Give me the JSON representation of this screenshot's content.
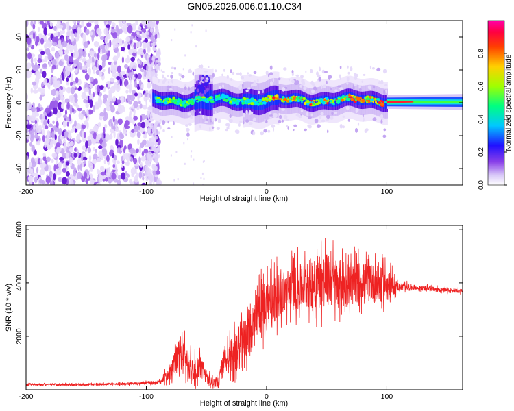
{
  "title": "GN05.2026.006.01.10.C34",
  "chart_data": [
    {
      "type": "heatmap",
      "title": "GN05.2026.006.01.10.C34",
      "xlabel": "Height of straight line (km)",
      "ylabel": "Frequency (Hz)",
      "xlim": [
        -200,
        163
      ],
      "ylim": [
        -50,
        50
      ],
      "xticks": [
        -200,
        -100,
        0,
        100
      ],
      "xtick_labels": [
        "-200",
        "-100",
        "0",
        "100"
      ],
      "yticks": [
        -40,
        -20,
        0,
        20,
        40
      ],
      "ytick_labels": [
        "-40",
        "-20",
        "0",
        "20",
        "40"
      ],
      "colorbar": {
        "label": "Normalized spectral amplitude",
        "range": [
          0,
          1
        ],
        "ticks": [
          0.0,
          0.2,
          0.4,
          0.6,
          0.8
        ],
        "tick_labels": [
          "0.0",
          "0.2",
          "0.4",
          "0.6",
          "0.8"
        ],
        "colors": [
          "#ffffff",
          "#b08cf0",
          "#7b2de0",
          "#0000ff",
          "#00e5ff",
          "#00ff50",
          "#f5ff00",
          "#ff8800",
          "#ff1020",
          "#ff00a0"
        ]
      },
      "regions": [
        {
          "x_range": [
            -200,
            -90
          ],
          "freq_range": [
            -50,
            50
          ],
          "amplitude": "low",
          "description": "scattered noise"
        },
        {
          "x_range": [
            -95,
            100
          ],
          "freq_center": 1.5,
          "freq_halfwidth": 7,
          "amplitude": "mid"
        },
        {
          "x_range": [
            100,
            163
          ],
          "freq_center": 0.5,
          "freq_halfwidth": 3,
          "amplitude": "high"
        }
      ]
    },
    {
      "type": "line",
      "xlabel": "Height of straight line (km)",
      "ylabel": "SNR (10 * v/v)",
      "xlim": [
        -200,
        163
      ],
      "ylim": [
        0,
        6150
      ],
      "xticks": [
        -200,
        -100,
        0,
        100
      ],
      "xtick_labels": [
        "-200",
        "-100",
        "0",
        "100"
      ],
      "yticks": [
        2000,
        4000,
        6000
      ],
      "ytick_labels": [
        "2000",
        "4000",
        "6000"
      ],
      "color": "#ee2222",
      "series": [
        {
          "name": "SNR",
          "x": [
            -200,
            -170,
            -140,
            -110,
            -90,
            -80,
            -75,
            -70,
            -65,
            -60,
            -55,
            -50,
            -45,
            -40,
            -35,
            -30,
            -25,
            -20,
            -15,
            -10,
            -5,
            0,
            5,
            10,
            15,
            20,
            25,
            30,
            35,
            40,
            45,
            50,
            55,
            60,
            65,
            70,
            75,
            80,
            85,
            90,
            95,
            100,
            105,
            110,
            115,
            120,
            125,
            130,
            135,
            140,
            145,
            150,
            155,
            163
          ],
          "values": [
            200,
            190,
            200,
            230,
            280,
            600,
            1100,
            1500,
            900,
            700,
            900,
            500,
            250,
            350,
            1100,
            1300,
            1400,
            1700,
            2200,
            2500,
            3000,
            3200,
            3400,
            3550,
            3650,
            3800,
            3800,
            3900,
            3950,
            4050,
            4150,
            4100,
            4050,
            4000,
            3900,
            3900,
            4000,
            4050,
            4000,
            3950,
            3900,
            3950,
            3900,
            3850,
            3850,
            3850,
            3800,
            3800,
            3800,
            3750,
            3750,
            3700,
            3700,
            3700
          ],
          "amplitude": [
            60,
            70,
            70,
            80,
            120,
            500,
            1000,
            1300,
            900,
            800,
            800,
            500,
            300,
            500,
            900,
            1100,
            1300,
            1500,
            1500,
            1600,
            1700,
            1800,
            1700,
            1400,
            1400,
            1500,
            1500,
            1600,
            1700,
            1800,
            1900,
            1800,
            1700,
            1700,
            1500,
            1400,
            1400,
            1300,
            1300,
            1300,
            1200,
            1200,
            700,
            250,
            250,
            200,
            180,
            170,
            170,
            160,
            160,
            150,
            150,
            150
          ]
        }
      ]
    }
  ]
}
